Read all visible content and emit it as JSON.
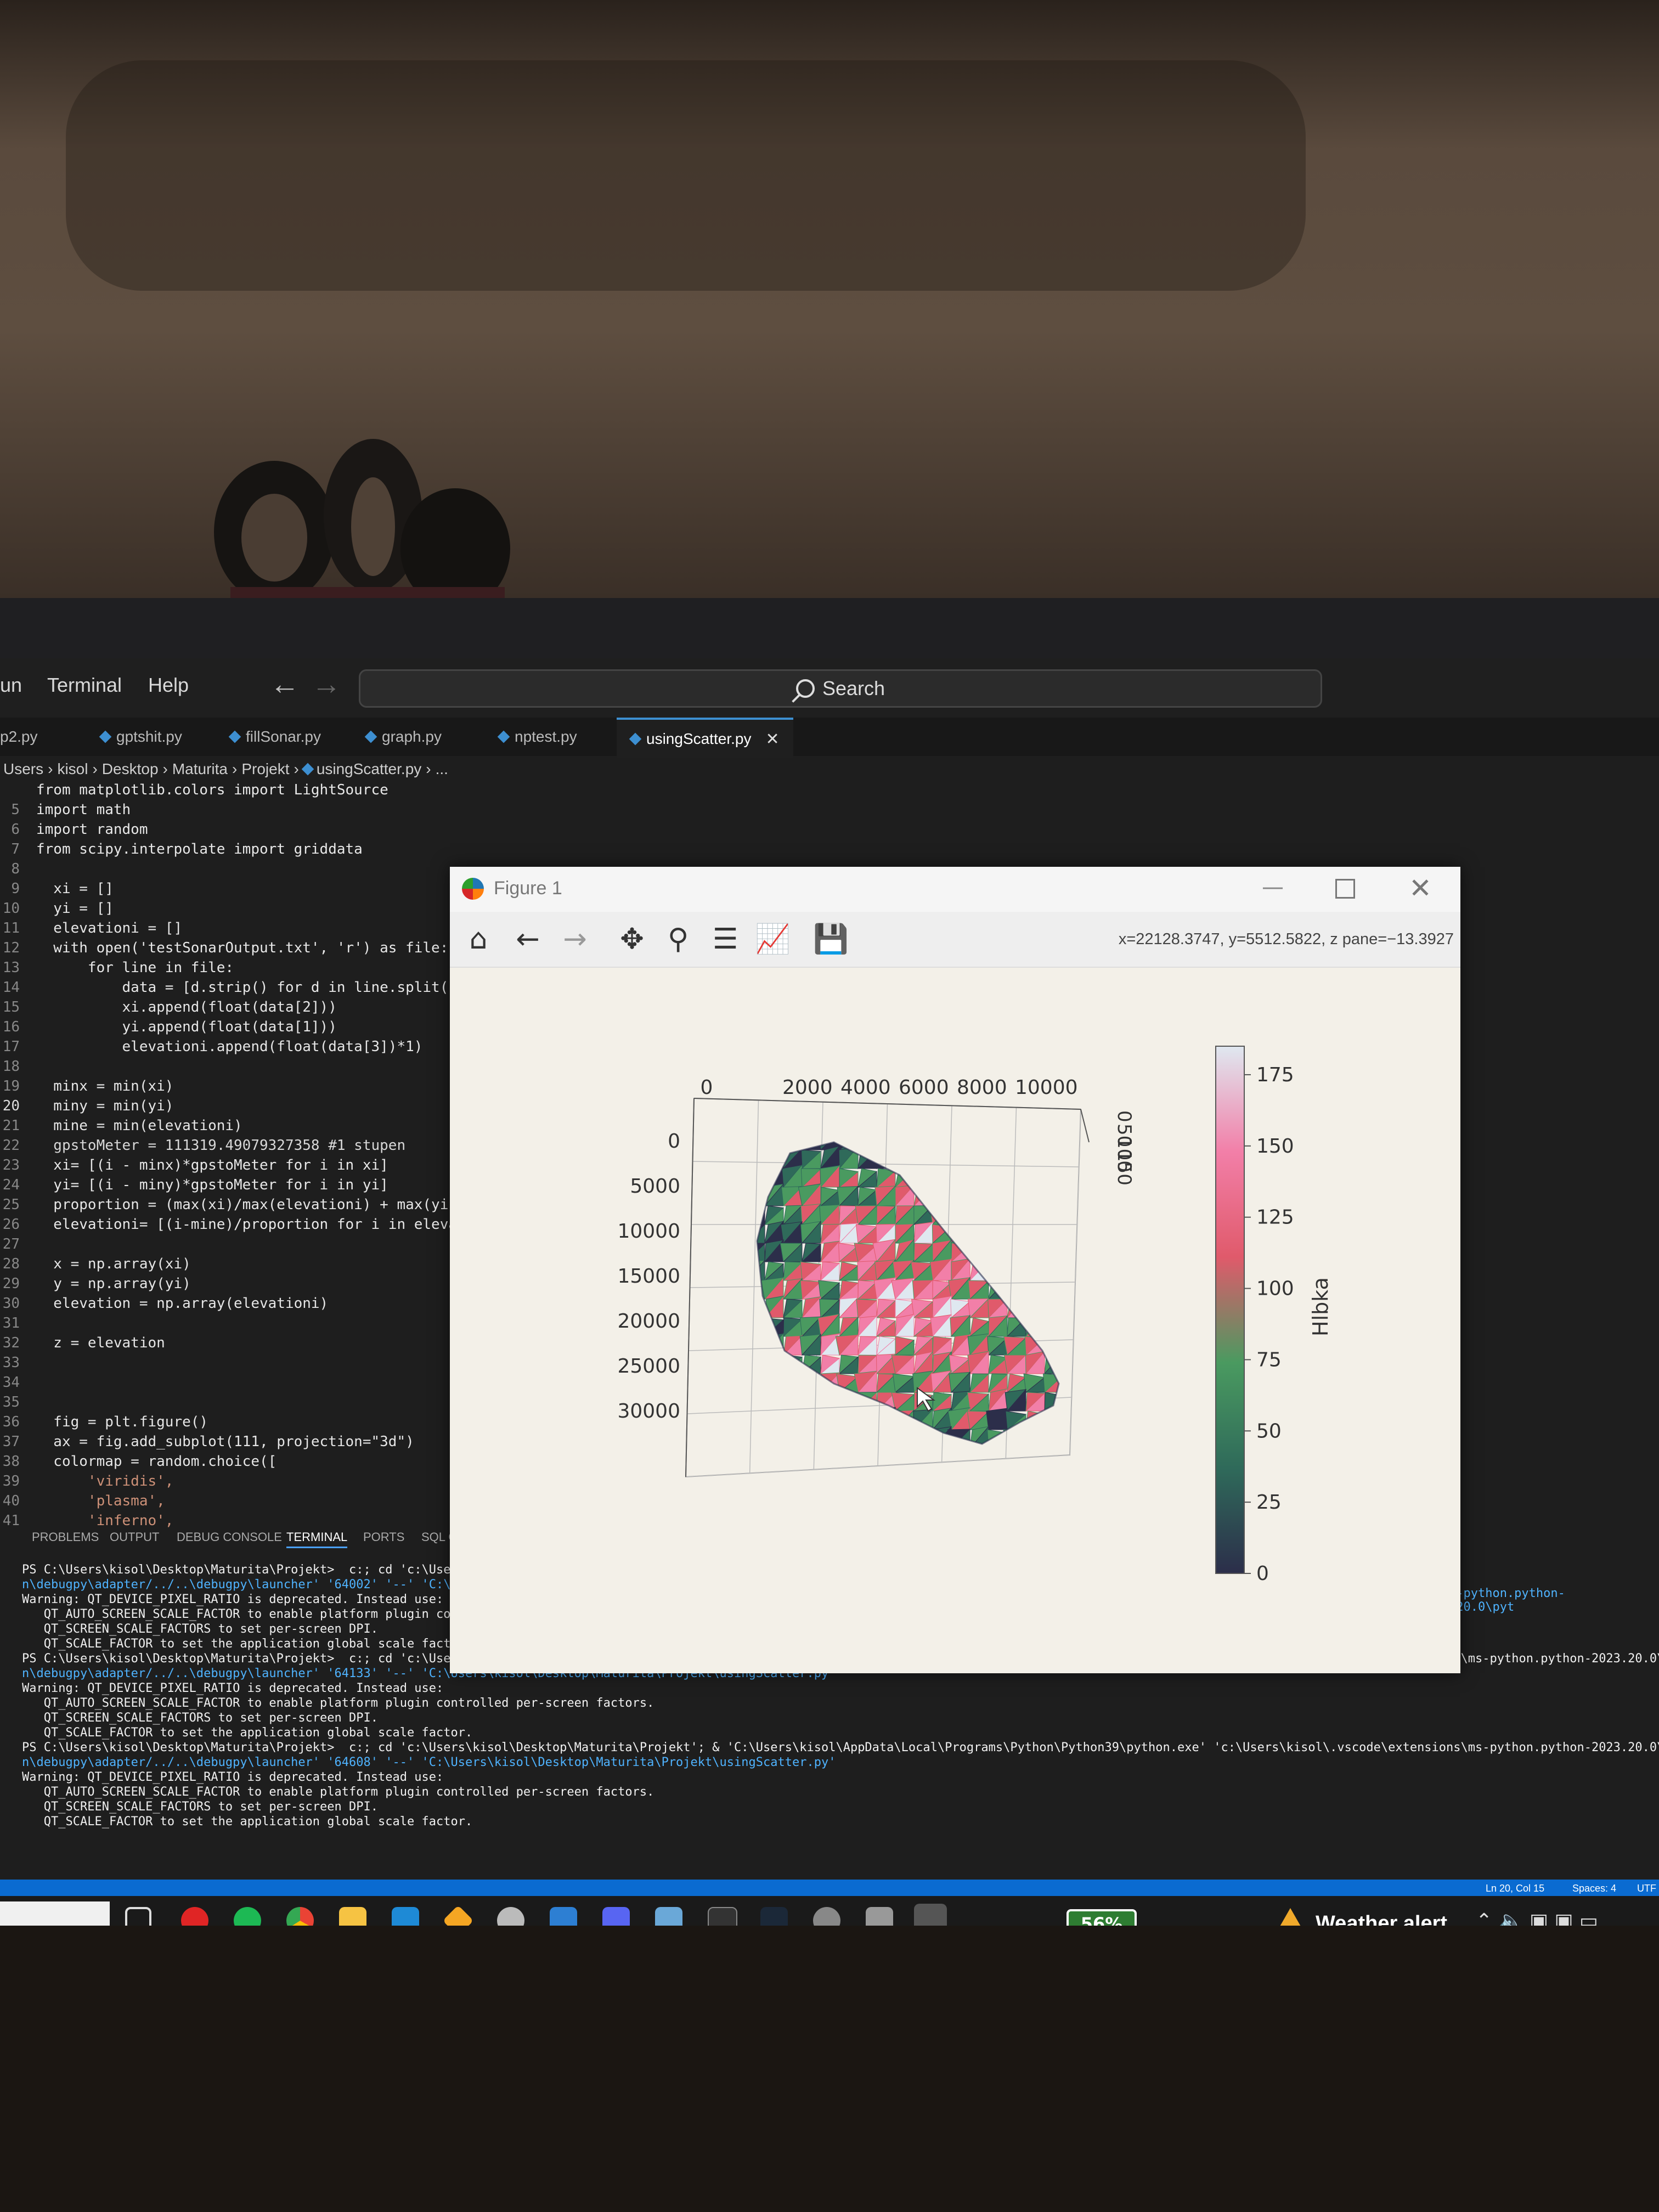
{
  "menubar": {
    "items": [
      "un",
      "Terminal",
      "Help"
    ],
    "search_placeholder": "Search"
  },
  "tabs": [
    {
      "label": "p2.py",
      "active": false
    },
    {
      "label": "gptshit.py",
      "active": false
    },
    {
      "label": "fillSonar.py",
      "active": false
    },
    {
      "label": "graph.py",
      "active": false
    },
    {
      "label": "nptest.py",
      "active": false
    },
    {
      "label": "usingScatter.py",
      "active": true
    }
  ],
  "breadcrumb": [
    "Users",
    "kisol",
    "Desktop",
    "Maturita",
    "Projekt",
    "usingScatter.py",
    "..."
  ],
  "code": [
    {
      "n": "",
      "t": "from matplotlib.colors import LightSource"
    },
    {
      "n": "5",
      "t": "import math"
    },
    {
      "n": "6",
      "t": "import random"
    },
    {
      "n": "7",
      "t": "from scipy.interpolate import griddata"
    },
    {
      "n": "8",
      "t": ""
    },
    {
      "n": "9",
      "t": "  xi = []"
    },
    {
      "n": "10",
      "t": "  yi = []"
    },
    {
      "n": "11",
      "t": "  elevationi = []"
    },
    {
      "n": "12",
      "t": "  with open('testSonarOutput.txt', 'r') as file:"
    },
    {
      "n": "13",
      "t": "      for line in file:"
    },
    {
      "n": "14",
      "t": "          data = [d.strip() for d in line.split(\",\""
    },
    {
      "n": "15",
      "t": "          xi.append(float(data[2]))"
    },
    {
      "n": "16",
      "t": "          yi.append(float(data[1]))"
    },
    {
      "n": "17",
      "t": "          elevationi.append(float(data[3])*1)"
    },
    {
      "n": "18",
      "t": ""
    },
    {
      "n": "19",
      "t": "  minx = min(xi)"
    },
    {
      "n": "20",
      "t": "  miny = min(yi)"
    },
    {
      "n": "21",
      "t": "  mine = min(elevationi)"
    },
    {
      "n": "22",
      "t": "  gpstoMeter = 111319.49079327358 #1 stupen"
    },
    {
      "n": "23",
      "t": "  xi= [(i - minx)*gpstoMeter for i in xi]"
    },
    {
      "n": "24",
      "t": "  yi= [(i - miny)*gpstoMeter for i in yi]"
    },
    {
      "n": "25",
      "t": "  proportion = (max(xi)/max(elevationi) + max(yi)/ma"
    },
    {
      "n": "26",
      "t": "  elevationi= [(i-mine)/proportion for i in elevati"
    },
    {
      "n": "27",
      "t": ""
    },
    {
      "n": "28",
      "t": "  x = np.array(xi)"
    },
    {
      "n": "29",
      "t": "  y = np.array(yi)"
    },
    {
      "n": "30",
      "t": "  elevation = np.array(elevationi)"
    },
    {
      "n": "31",
      "t": ""
    },
    {
      "n": "32",
      "t": "  z = elevation"
    },
    {
      "n": "33",
      "t": ""
    },
    {
      "n": "34",
      "t": ""
    },
    {
      "n": "35",
      "t": ""
    },
    {
      "n": "36",
      "t": "  fig = plt.figure()"
    },
    {
      "n": "37",
      "t": "  ax = fig.add_subplot(111, projection=\"3d\")"
    },
    {
      "n": "38",
      "t": "  colormap = random.choice(["
    },
    {
      "n": "39",
      "t": "      'viridis',"
    },
    {
      "n": "40",
      "t": "      'plasma',"
    },
    {
      "n": "41",
      "t": "      'inferno',"
    }
  ],
  "panel_tabs": [
    "PROBLEMS",
    "OUTPUT",
    "DEBUG CONSOLE",
    "TERMINAL",
    "PORTS",
    "SQL CON"
  ],
  "terminal": [
    "PS C:\\Users\\kisol\\Desktop\\Maturita\\Projekt>  c:; cd 'c:\\Users\\",
    "n\\debugpy\\adapter/../..\\debugpy\\launcher' '64002' '--' 'C:\\Use",
    "Warning: QT_DEVICE_PIXEL_RATIO is deprecated. Instead use:",
    "   QT_AUTO_SCREEN_SCALE_FACTOR to enable platform plugin contr",
    "   QT_SCREEN_SCALE_FACTORS to set per-screen DPI.",
    "   QT_SCALE_FACTOR to set the application global scale factor.",
    "PS C:\\Users\\kisol\\Desktop\\Maturita\\Projekt>  c:; cd 'c:\\Users\\kisol\\Desktop\\Maturita\\Projekt'; & 'C:\\Users\\kisol\\AppData\\Local\\Programs\\Python\\Python39\\python.exe' 'c:\\Users\\kisol\\.vscode\\extensions\\ms-python.python-2023.20.0\\pyth",
    "n\\debugpy\\adapter/../..\\debugpy\\launcher' '64133' '--' 'C:\\Users\\kisol\\Desktop\\Maturita\\Projekt\\usingScatter.py'",
    "Warning: QT_DEVICE_PIXEL_RATIO is deprecated. Instead use:",
    "   QT_AUTO_SCREEN_SCALE_FACTOR to enable platform plugin controlled per-screen factors.",
    "   QT_SCREEN_SCALE_FACTORS to set per-screen DPI.",
    "   QT_SCALE_FACTOR to set the application global scale factor.",
    "PS C:\\Users\\kisol\\Desktop\\Maturita\\Projekt>  c:; cd 'c:\\Users\\kisol\\Desktop\\Maturita\\Projekt'; & 'C:\\Users\\kisol\\AppData\\Local\\Programs\\Python\\Python39\\python.exe' 'c:\\Users\\kisol\\.vscode\\extensions\\ms-python.python-2023.20.0\\pytho",
    "n\\debugpy\\adapter/../..\\debugpy\\launcher' '64608' '--' 'C:\\Users\\kisol\\Desktop\\Maturita\\Projekt\\usingScatter.py'",
    "Warning: QT_DEVICE_PIXEL_RATIO is deprecated. Instead use:",
    "   QT_AUTO_SCREEN_SCALE_FACTOR to enable platform plugin controlled per-screen factors.",
    "   QT_SCREEN_SCALE_FACTORS to set per-screen DPI.",
    "   QT_SCALE_FACTOR to set the application global scale factor."
  ],
  "terminal_right_fragment": "ns\\ms-python.python-2023.20.0\\pyt",
  "statusbar": {
    "position": "Ln 20, Col 15",
    "spaces": "Spaces: 4",
    "encoding": "UTF"
  },
  "taskbar": {
    "battery": "56%",
    "weather": "Weather alert"
  },
  "figure": {
    "title": "Figure 1",
    "coords": "x=22128.3747, y=5512.5822, z pane=−13.3927",
    "tools": [
      "home-icon",
      "back-icon",
      "forward-icon",
      "pan-icon",
      "zoom-icon",
      "subplots-icon",
      "customize-icon",
      "save-icon"
    ]
  },
  "chart_data": {
    "type": "3d-surface",
    "x_ticks": [
      "0",
      "2000",
      "4000",
      "6000",
      "8000",
      "10000"
    ],
    "y_ticks": [
      "0",
      "5000",
      "10000",
      "15000",
      "20000",
      "25000",
      "30000"
    ],
    "z_ticks": [
      "0",
      "50",
      "100",
      "150"
    ],
    "colorbar": {
      "label": "Hlbka",
      "ticks": [
        "0",
        "25",
        "50",
        "75",
        "100",
        "125",
        "150",
        "175"
      ],
      "range": [
        0,
        185
      ]
    },
    "colormap_colors": [
      "#2c2e4a",
      "#2f6a5a",
      "#4a9a60",
      "#e05a6b",
      "#f27fa8",
      "#dfe8f0"
    ]
  },
  "colors": {
    "accent": "#0a6bd1",
    "tab_accent": "#3d8fd1"
  }
}
